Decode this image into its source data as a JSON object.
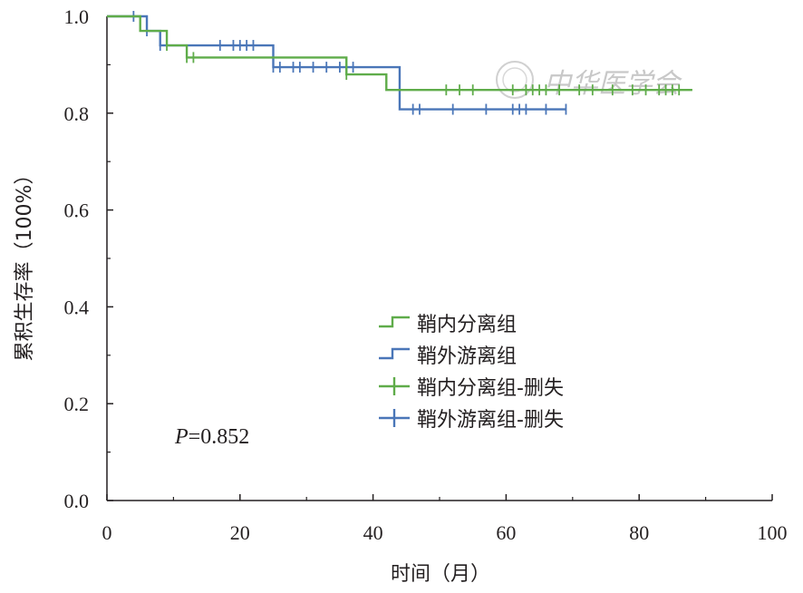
{
  "chart_data": {
    "type": "line",
    "xlabel": "时间（月）",
    "ylabel": "累积生存率（100%）",
    "xlim": [
      0,
      100
    ],
    "ylim": [
      0,
      1.0
    ],
    "x_ticks": [
      "0",
      "20",
      "40",
      "60",
      "80",
      "100"
    ],
    "y_ticks": [
      "0.0",
      "0.2",
      "0.4",
      "0.6",
      "0.8",
      "1.0"
    ],
    "annotation": {
      "italic": "P",
      "value": "=0.852"
    },
    "watermark": "中华医学会",
    "legend_position": "center-right",
    "legend": [
      {
        "label": "鞘内分离组",
        "kind": "step",
        "color": "#5fac4a"
      },
      {
        "label": "鞘外游离组",
        "kind": "step",
        "color": "#4a76b8"
      },
      {
        "label": "鞘内分离组-删失",
        "kind": "censor",
        "color": "#5fac4a"
      },
      {
        "label": "鞘外游离组-删失",
        "kind": "censor",
        "color": "#4a76b8"
      }
    ],
    "series": [
      {
        "name": "鞘内分离组",
        "color": "#5fac4a",
        "steps": [
          [
            0,
            1.0
          ],
          [
            5,
            0.97
          ],
          [
            9,
            0.94
          ],
          [
            12,
            0.915
          ],
          [
            36,
            0.88
          ],
          [
            42,
            0.848
          ],
          [
            88,
            0.848
          ]
        ],
        "censored": [
          [
            9,
            0.94
          ],
          [
            12,
            0.915
          ],
          [
            13,
            0.915
          ],
          [
            36,
            0.88
          ],
          [
            51,
            0.848
          ],
          [
            53,
            0.848
          ],
          [
            55,
            0.848
          ],
          [
            61,
            0.848
          ],
          [
            63,
            0.848
          ],
          [
            64,
            0.848
          ],
          [
            65,
            0.848
          ],
          [
            66,
            0.848
          ],
          [
            68,
            0.848
          ],
          [
            71,
            0.848
          ],
          [
            73,
            0.848
          ],
          [
            76,
            0.848
          ],
          [
            79,
            0.848
          ],
          [
            81,
            0.848
          ],
          [
            83,
            0.848
          ],
          [
            84,
            0.848
          ],
          [
            85,
            0.848
          ],
          [
            86,
            0.848
          ]
        ]
      },
      {
        "name": "鞘外游离组",
        "color": "#4a76b8",
        "steps": [
          [
            0,
            1.0
          ],
          [
            6,
            0.97
          ],
          [
            8,
            0.94
          ],
          [
            25,
            0.895
          ],
          [
            44,
            0.808
          ],
          [
            69,
            0.808
          ]
        ],
        "censored": [
          [
            4,
            1.0
          ],
          [
            6,
            0.97
          ],
          [
            8,
            0.94
          ],
          [
            17,
            0.94
          ],
          [
            19,
            0.94
          ],
          [
            20,
            0.94
          ],
          [
            21,
            0.94
          ],
          [
            22,
            0.94
          ],
          [
            25,
            0.895
          ],
          [
            26,
            0.895
          ],
          [
            28,
            0.895
          ],
          [
            29,
            0.895
          ],
          [
            31,
            0.895
          ],
          [
            33,
            0.895
          ],
          [
            35,
            0.895
          ],
          [
            37,
            0.895
          ],
          [
            46,
            0.808
          ],
          [
            47,
            0.808
          ],
          [
            52,
            0.808
          ],
          [
            57,
            0.808
          ],
          [
            61,
            0.808
          ],
          [
            62,
            0.808
          ],
          [
            63,
            0.808
          ],
          [
            66,
            0.808
          ],
          [
            69,
            0.808
          ]
        ]
      }
    ]
  }
}
